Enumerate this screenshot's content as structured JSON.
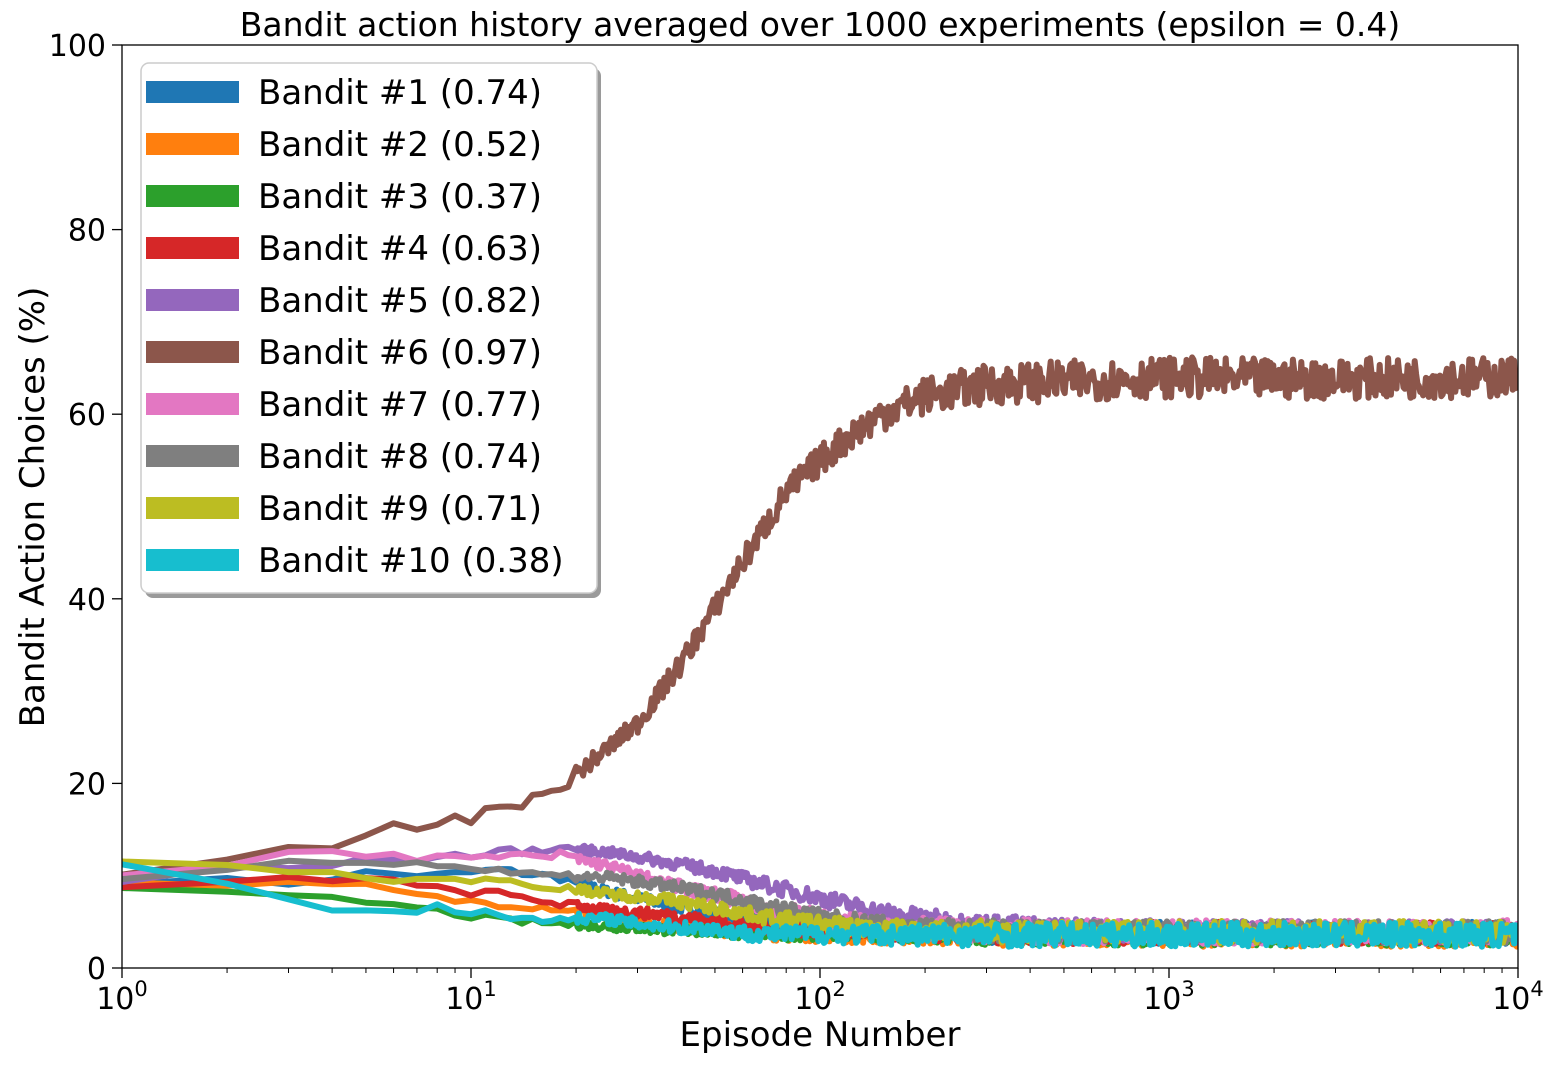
{
  "chart_data": {
    "type": "line",
    "title": "Bandit action history averaged over 1000 experiments (epsilon = 0.4)",
    "xlabel": "Episode Number",
    "ylabel": "Bandit Action Choices (%)",
    "x_scale": "log",
    "xlim": [
      1,
      10000
    ],
    "ylim": [
      0,
      100
    ],
    "x_ticks": [
      {
        "base": "10",
        "exp": "0",
        "value": 1
      },
      {
        "base": "10",
        "exp": "1",
        "value": 10
      },
      {
        "base": "10",
        "exp": "2",
        "value": 100
      },
      {
        "base": "10",
        "exp": "3",
        "value": 1000
      },
      {
        "base": "10",
        "exp": "4",
        "value": 10000
      }
    ],
    "y_ticks": [
      "0",
      "20",
      "40",
      "60",
      "80",
      "100"
    ],
    "grid": false,
    "legend_position": "top-left",
    "series": [
      {
        "name": "Bandit #1 (0.74)",
        "color": "#1f77b4",
        "x": [
          1,
          2,
          3,
          5,
          8,
          12,
          18,
          25,
          35,
          50,
          70,
          100,
          150,
          250,
          500,
          1000,
          2000,
          5000,
          10000
        ],
        "y": [
          9.5,
          9.4,
          9.2,
          10.3,
          10.0,
          10.6,
          9.8,
          8.2,
          7.0,
          5.8,
          5.0,
          4.5,
          4.0,
          3.9,
          3.9,
          3.8,
          3.8,
          3.8,
          3.8
        ],
        "noise": 1.2
      },
      {
        "name": "Bandit #2 (0.52)",
        "color": "#ff7f0e",
        "x": [
          1,
          2,
          3,
          5,
          8,
          12,
          18,
          25,
          35,
          50,
          70,
          100,
          150,
          250,
          500,
          1000,
          2000,
          5000,
          10000
        ],
        "y": [
          9.0,
          9.3,
          9.0,
          8.8,
          7.5,
          7.0,
          6.5,
          5.5,
          4.8,
          4.2,
          3.8,
          3.7,
          3.6,
          3.6,
          3.6,
          3.5,
          3.5,
          3.5,
          3.5
        ],
        "noise": 1.2
      },
      {
        "name": "Bandit #3 (0.37)",
        "color": "#2ca02c",
        "x": [
          1,
          2,
          3,
          5,
          8,
          12,
          18,
          25,
          35,
          50,
          70,
          100,
          150,
          250,
          500,
          1000,
          2000,
          5000,
          10000
        ],
        "y": [
          8.3,
          8.0,
          7.6,
          7.2,
          6.2,
          5.2,
          4.8,
          4.5,
          4.2,
          4.0,
          3.8,
          3.7,
          3.6,
          3.6,
          3.6,
          3.5,
          3.5,
          3.5,
          3.5
        ],
        "noise": 1.1
      },
      {
        "name": "Bandit #4 (0.63)",
        "color": "#d62728",
        "x": [
          1,
          2,
          3,
          5,
          8,
          12,
          18,
          25,
          35,
          50,
          70,
          100,
          150,
          250,
          500,
          1000,
          2000,
          5000,
          10000
        ],
        "y": [
          9.0,
          9.1,
          9.6,
          9.8,
          8.5,
          8.0,
          7.0,
          6.2,
          5.8,
          5.0,
          4.5,
          4.2,
          4.0,
          3.9,
          3.8,
          3.8,
          3.8,
          3.8,
          3.8
        ],
        "noise": 1.2
      },
      {
        "name": "Bandit #5 (0.82)",
        "color": "#9467bd",
        "x": [
          1,
          2,
          3,
          5,
          8,
          12,
          18,
          25,
          35,
          50,
          70,
          100,
          150,
          250,
          500,
          1000,
          2000,
          5000,
          10000
        ],
        "y": [
          9.5,
          10.6,
          11.0,
          11.6,
          12.0,
          12.5,
          13.0,
          12.5,
          11.6,
          10.5,
          9.0,
          7.6,
          6.0,
          4.8,
          4.2,
          4.0,
          3.9,
          3.9,
          3.9
        ],
        "noise": 1.2
      },
      {
        "name": "Bandit #6 (0.97)",
        "color": "#8c564b",
        "x": [
          1,
          2,
          3,
          4,
          6,
          8,
          10,
          12,
          15,
          20,
          25,
          30,
          40,
          50,
          60,
          70,
          80,
          100,
          120,
          150,
          200,
          300,
          500,
          1000,
          2000,
          5000,
          10000
        ],
        "y": [
          9.8,
          12.0,
          12.5,
          12.2,
          15.0,
          15.5,
          16.2,
          17.5,
          18.0,
          21.0,
          24.0,
          26.5,
          33.0,
          39.0,
          44.0,
          48.0,
          51.5,
          55.0,
          57.5,
          60.0,
          62.0,
          63.2,
          63.6,
          64.0,
          63.8,
          63.9,
          64.0
        ],
        "noise": 2.2
      },
      {
        "name": "Bandit #7 (0.77)",
        "color": "#e377c2",
        "x": [
          1,
          2,
          3,
          5,
          8,
          12,
          18,
          25,
          35,
          50,
          70,
          100,
          150,
          250,
          500,
          1000,
          2000,
          5000,
          10000
        ],
        "y": [
          10.3,
          11.5,
          12.3,
          12.5,
          11.8,
          12.0,
          12.2,
          11.0,
          9.2,
          8.0,
          6.5,
          5.4,
          4.5,
          4.1,
          3.9,
          3.9,
          3.9,
          3.9,
          3.9
        ],
        "noise": 1.3
      },
      {
        "name": "Bandit #8 (0.74)",
        "color": "#7f7f7f",
        "x": [
          1,
          2,
          3,
          5,
          8,
          12,
          18,
          25,
          35,
          50,
          70,
          100,
          150,
          250,
          500,
          1000,
          2000,
          5000,
          10000
        ],
        "y": [
          10.0,
          10.6,
          11.5,
          11.8,
          11.2,
          10.5,
          10.0,
          9.8,
          9.0,
          8.0,
          6.8,
          5.5,
          4.6,
          4.1,
          3.9,
          3.9,
          3.9,
          3.9,
          3.9
        ],
        "noise": 1.2
      },
      {
        "name": "Bandit #9 (0.71)",
        "color": "#bcbd22",
        "x": [
          1,
          2,
          3,
          5,
          8,
          12,
          18,
          25,
          35,
          50,
          70,
          100,
          150,
          250,
          500,
          1000,
          2000,
          5000,
          10000
        ],
        "y": [
          11.2,
          11.3,
          10.5,
          9.8,
          9.6,
          9.5,
          8.8,
          8.0,
          7.5,
          6.5,
          5.5,
          4.8,
          4.2,
          4.0,
          3.9,
          3.9,
          3.9,
          3.9,
          3.9
        ],
        "noise": 1.2
      },
      {
        "name": "Bandit #10 (0.38)",
        "color": "#17becf",
        "x": [
          1,
          2,
          3,
          4,
          6,
          8,
          10,
          12,
          15,
          20,
          25,
          30,
          40,
          50,
          60,
          70,
          100,
          150,
          250,
          500,
          1000,
          2000,
          5000,
          10000
        ],
        "y": [
          11.0,
          9.5,
          7.4,
          6.6,
          6.2,
          6.6,
          6.1,
          5.6,
          5.3,
          5.4,
          5.3,
          4.8,
          4.4,
          4.2,
          3.8,
          3.7,
          3.7,
          3.6,
          3.6,
          3.6,
          3.6,
          3.6,
          3.6,
          3.6
        ],
        "noise": 1.3
      }
    ]
  }
}
